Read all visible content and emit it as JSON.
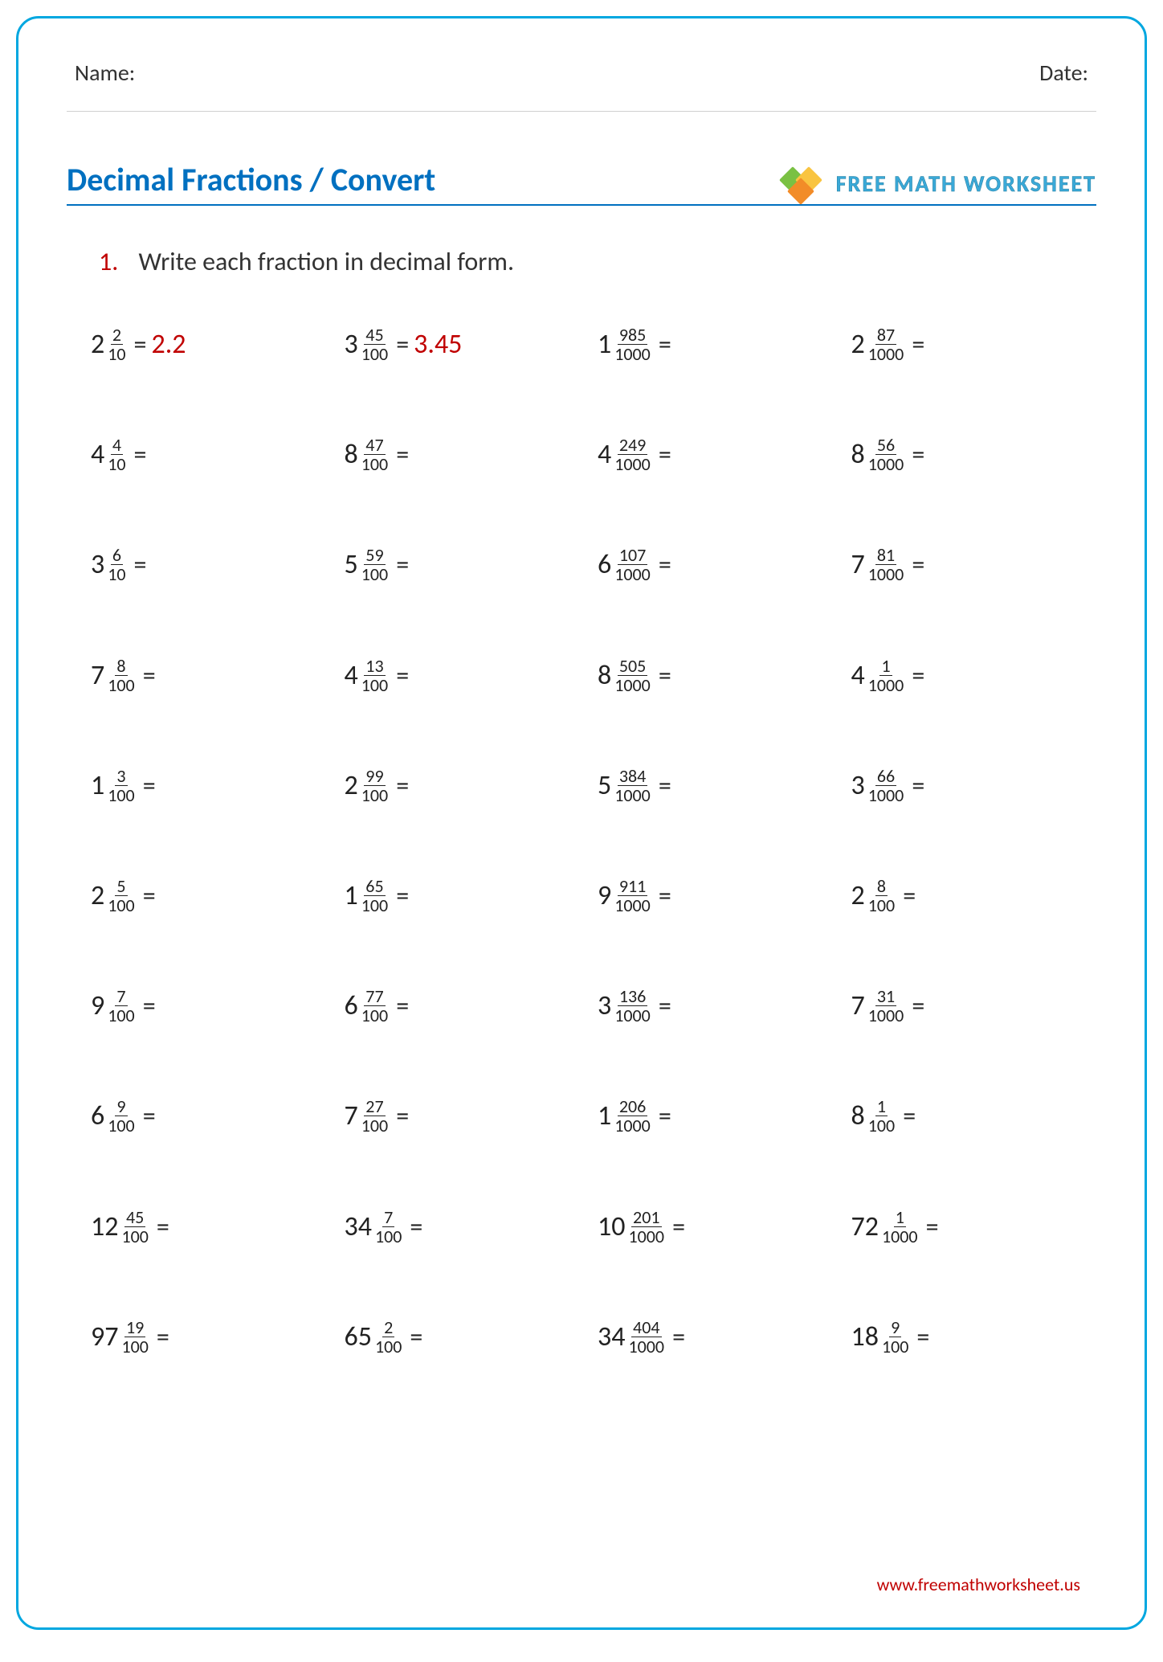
{
  "header": {
    "name_label": "Name:",
    "date_label": "Date:"
  },
  "title": "Decimal Fractions / Convert",
  "logo_text": "FREE MATH WORKSHEET",
  "instruction_num": "1.",
  "instruction_text": "Write each fraction in decimal form.",
  "footer_url": "www.freemathworksheet.us",
  "colors": {
    "border": "#00a7e0",
    "title": "#0070c0",
    "accent": "#c00000",
    "text": "#222222"
  },
  "problems": [
    {
      "whole": "2",
      "num": "2",
      "den": "10",
      "ans": "2.2"
    },
    {
      "whole": "3",
      "num": "45",
      "den": "100",
      "ans": "3.45"
    },
    {
      "whole": "1",
      "num": "985",
      "den": "1000",
      "ans": ""
    },
    {
      "whole": "2",
      "num": "87",
      "den": "1000",
      "ans": ""
    },
    {
      "whole": "4",
      "num": "4",
      "den": "10",
      "ans": ""
    },
    {
      "whole": "8",
      "num": "47",
      "den": "100",
      "ans": ""
    },
    {
      "whole": "4",
      "num": "249",
      "den": "1000",
      "ans": ""
    },
    {
      "whole": "8",
      "num": "56",
      "den": "1000",
      "ans": ""
    },
    {
      "whole": "3",
      "num": "6",
      "den": "10",
      "ans": ""
    },
    {
      "whole": "5",
      "num": "59",
      "den": "100",
      "ans": ""
    },
    {
      "whole": "6",
      "num": "107",
      "den": "1000",
      "ans": ""
    },
    {
      "whole": "7",
      "num": "81",
      "den": "1000",
      "ans": ""
    },
    {
      "whole": "7",
      "num": "8",
      "den": "100",
      "ans": ""
    },
    {
      "whole": "4",
      "num": "13",
      "den": "100",
      "ans": ""
    },
    {
      "whole": "8",
      "num": "505",
      "den": "1000",
      "ans": ""
    },
    {
      "whole": "4",
      "num": "1",
      "den": "1000",
      "ans": ""
    },
    {
      "whole": "1",
      "num": "3",
      "den": "100",
      "ans": ""
    },
    {
      "whole": "2",
      "num": "99",
      "den": "100",
      "ans": ""
    },
    {
      "whole": "5",
      "num": "384",
      "den": "1000",
      "ans": ""
    },
    {
      "whole": "3",
      "num": "66",
      "den": "1000",
      "ans": ""
    },
    {
      "whole": "2",
      "num": "5",
      "den": "100",
      "ans": ""
    },
    {
      "whole": "1",
      "num": "65",
      "den": "100",
      "ans": ""
    },
    {
      "whole": "9",
      "num": "911",
      "den": "1000",
      "ans": ""
    },
    {
      "whole": "2",
      "num": "8",
      "den": "100",
      "ans": ""
    },
    {
      "whole": "9",
      "num": "7",
      "den": "100",
      "ans": ""
    },
    {
      "whole": "6",
      "num": "77",
      "den": "100",
      "ans": ""
    },
    {
      "whole": "3",
      "num": "136",
      "den": "1000",
      "ans": ""
    },
    {
      "whole": "7",
      "num": "31",
      "den": "1000",
      "ans": ""
    },
    {
      "whole": "6",
      "num": "9",
      "den": "100",
      "ans": ""
    },
    {
      "whole": "7",
      "num": "27",
      "den": "100",
      "ans": ""
    },
    {
      "whole": "1",
      "num": "206",
      "den": "1000",
      "ans": ""
    },
    {
      "whole": "8",
      "num": "1",
      "den": "100",
      "ans": ""
    },
    {
      "whole": "12",
      "num": "45",
      "den": "100",
      "ans": ""
    },
    {
      "whole": "34",
      "num": "7",
      "den": "100",
      "ans": ""
    },
    {
      "whole": "10",
      "num": "201",
      "den": "1000",
      "ans": ""
    },
    {
      "whole": "72",
      "num": "1",
      "den": "1000",
      "ans": ""
    },
    {
      "whole": "97",
      "num": "19",
      "den": "100",
      "ans": ""
    },
    {
      "whole": "65",
      "num": "2",
      "den": "100",
      "ans": ""
    },
    {
      "whole": "34",
      "num": "404",
      "den": "1000",
      "ans": ""
    },
    {
      "whole": "18",
      "num": "9",
      "den": "100",
      "ans": ""
    }
  ]
}
